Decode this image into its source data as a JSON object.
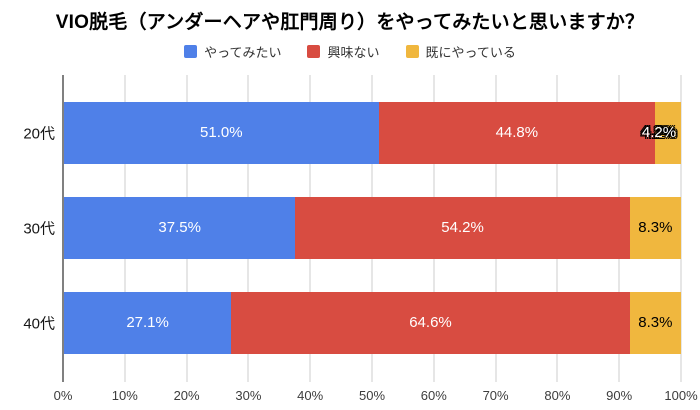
{
  "chart_data": {
    "type": "bar",
    "orientation": "horizontal",
    "stacked": true,
    "title": "VIO脱毛（アンダーヘアや肛門周り）をやってみたいと思いますか？",
    "categories": [
      "20代",
      "30代",
      "40代"
    ],
    "series": [
      {
        "name": "やってみたい",
        "color": "#4f80e8",
        "label_color": "#ffffff",
        "values": [
          51.0,
          37.5,
          27.1
        ]
      },
      {
        "name": "興味ない",
        "color": "#d84c41",
        "label_color": "#ffffff",
        "values": [
          44.8,
          54.2,
          64.6
        ]
      },
      {
        "name": "既にやっている",
        "color": "#f0b73e",
        "label_color": "#000000",
        "values": [
          4.2,
          8.3,
          8.3
        ]
      }
    ],
    "labels": [
      [
        "51.0%",
        "44.8%",
        "4.2%"
      ],
      [
        "37.5%",
        "54.2%",
        "8.3%"
      ],
      [
        "27.1%",
        "64.6%",
        "8.3%"
      ]
    ],
    "x_ticks": [
      "0%",
      "10%",
      "20%",
      "30%",
      "40%",
      "50%",
      "60%",
      "70%",
      "80%",
      "90%",
      "100%"
    ],
    "xlim": [
      0,
      100
    ],
    "legend_position": "top",
    "grid": true,
    "colors": {
      "background": "#ffffff",
      "title": "#000000",
      "axis_line": "#808080",
      "gridline": "#e6e6e6",
      "tick_label": "#3d3d3d",
      "category_label": "#161616"
    }
  }
}
